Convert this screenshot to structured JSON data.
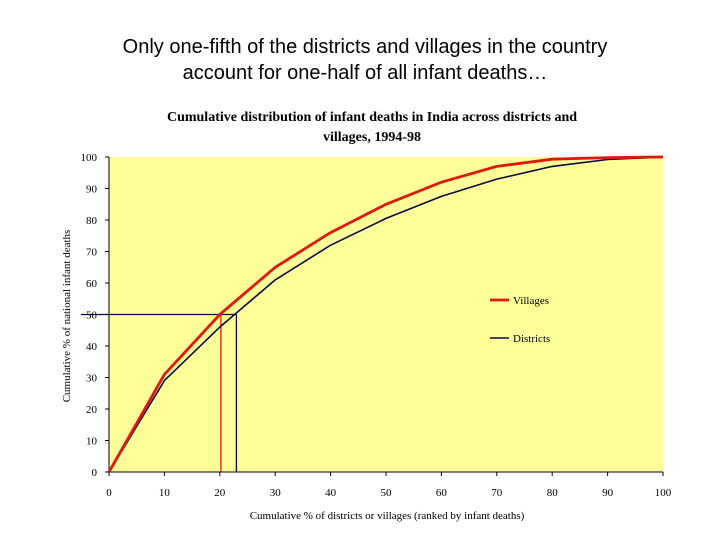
{
  "slide": {
    "title_line1": "Only one-fifth of the districts and villages in the country",
    "title_line2": "account for one-half of all infant deaths…"
  },
  "chart_data": {
    "type": "line",
    "title_line1": "Cumulative distribution of infant deaths in India across districts and",
    "title_line2": "villages, 1994-98",
    "xlabel": "Cumulative % of districts or villages (ranked by infant deaths)",
    "ylabel": "Cumulative % of national infant deaths",
    "xlim": [
      0,
      100
    ],
    "ylim": [
      0,
      100
    ],
    "xticks": [
      0,
      10,
      20,
      30,
      40,
      50,
      60,
      70,
      80,
      90,
      100
    ],
    "yticks": [
      0,
      10,
      20,
      30,
      40,
      50,
      60,
      70,
      80,
      90,
      100
    ],
    "plot_background": "#ffff99",
    "legend_position": "right",
    "series": [
      {
        "name": "Villages",
        "color": "#dd1a0c",
        "x": [
          0,
          10,
          20,
          30,
          40,
          50,
          60,
          70,
          80,
          90,
          100
        ],
        "y": [
          0,
          31,
          50,
          65,
          76,
          85,
          92,
          97,
          99.3,
          99.8,
          100
        ]
      },
      {
        "name": "Districts",
        "color": "#0a0a40",
        "x": [
          0,
          10,
          20,
          30,
          40,
          50,
          60,
          70,
          80,
          90,
          100
        ],
        "y": [
          0,
          29,
          46,
          61,
          72,
          80.5,
          87.5,
          93,
          97,
          99.2,
          100
        ]
      }
    ],
    "reference_lines": [
      {
        "series": "Villages",
        "x": 20.2,
        "y": 50
      },
      {
        "series": "Districts",
        "x": 23,
        "y": 50
      }
    ]
  }
}
